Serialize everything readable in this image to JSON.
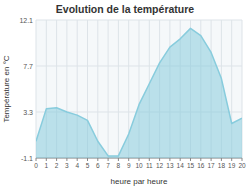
{
  "chart_data": {
    "type": "area",
    "title": "Evolution de la température",
    "x_label": "heure par heure",
    "y_label": "Température en °C",
    "x": [
      0,
      1,
      2,
      3,
      4,
      5,
      6,
      7,
      8,
      9,
      10,
      11,
      12,
      13,
      14,
      15,
      16,
      17,
      18,
      19,
      20
    ],
    "values": [
      0.5,
      3.6,
      3.7,
      3.3,
      3.0,
      2.5,
      0.5,
      -0.9,
      -0.9,
      1.2,
      4.0,
      6.0,
      8.0,
      9.5,
      10.3,
      11.3,
      10.6,
      9.0,
      6.5,
      2.2,
      2.7
    ],
    "color": "#88ccdd",
    "xlim": [
      0,
      20
    ],
    "xticks": [
      0,
      1,
      2,
      3,
      4,
      5,
      6,
      7,
      8,
      9,
      10,
      11,
      12,
      13,
      14,
      15,
      16,
      17,
      18,
      19,
      20
    ],
    "ylim": [
      -1.1,
      12.1
    ],
    "yticks": [
      -1.1,
      3.3,
      7.7,
      12.1
    ],
    "grid": true
  }
}
